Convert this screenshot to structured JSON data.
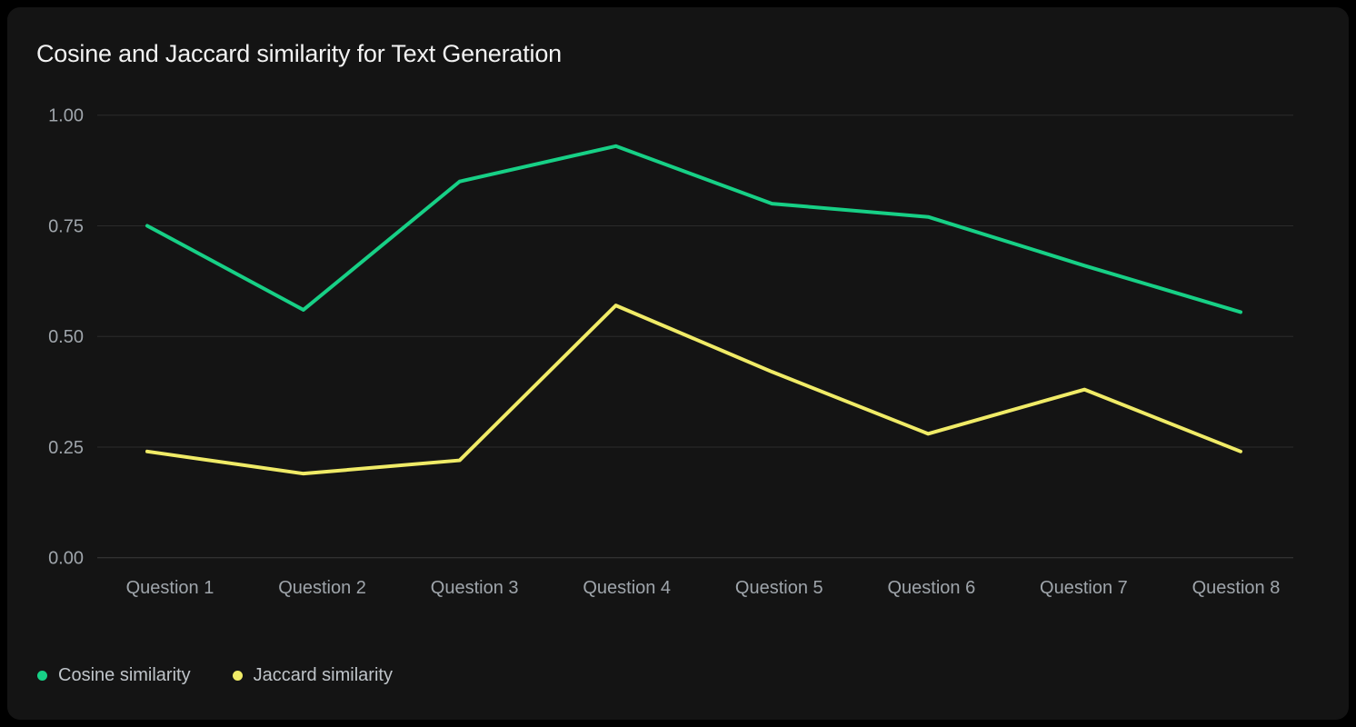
{
  "title": "Cosine and Jaccard similarity for Text Generation",
  "chart_data": {
    "type": "line",
    "title": "Cosine and Jaccard similarity for Text Generation",
    "categories": [
      "Question 1",
      "Question 2",
      "Question 3",
      "Question 4",
      "Question 5",
      "Question 6",
      "Question 7",
      "Question 8"
    ],
    "series": [
      {
        "name": "Cosine similarity",
        "color": "#17d086",
        "values": [
          0.75,
          0.56,
          0.85,
          0.93,
          0.8,
          0.77,
          0.66,
          0.555
        ]
      },
      {
        "name": "Jaccard similarity",
        "color": "#f0eb67",
        "values": [
          0.24,
          0.19,
          0.22,
          0.57,
          0.42,
          0.28,
          0.38,
          0.24
        ]
      }
    ],
    "xlabel": "",
    "ylabel": "",
    "ylim": [
      0.0,
      1.0
    ],
    "yticks": [
      "1.00",
      "0.75",
      "0.50",
      "0.25",
      "0.00"
    ],
    "ytick_values": [
      1.0,
      0.75,
      0.5,
      0.25,
      0.0
    ],
    "grid": true,
    "legend_position": "bottom-left"
  },
  "colors": {
    "page_background": "#000000",
    "card_background": "#141414",
    "title_text": "#f2f2f2",
    "tick_text": "#9fa5ab",
    "legend_text": "#bfc4c9",
    "gridline": "#2b2b2b",
    "baseline": "#3b3b3b"
  }
}
